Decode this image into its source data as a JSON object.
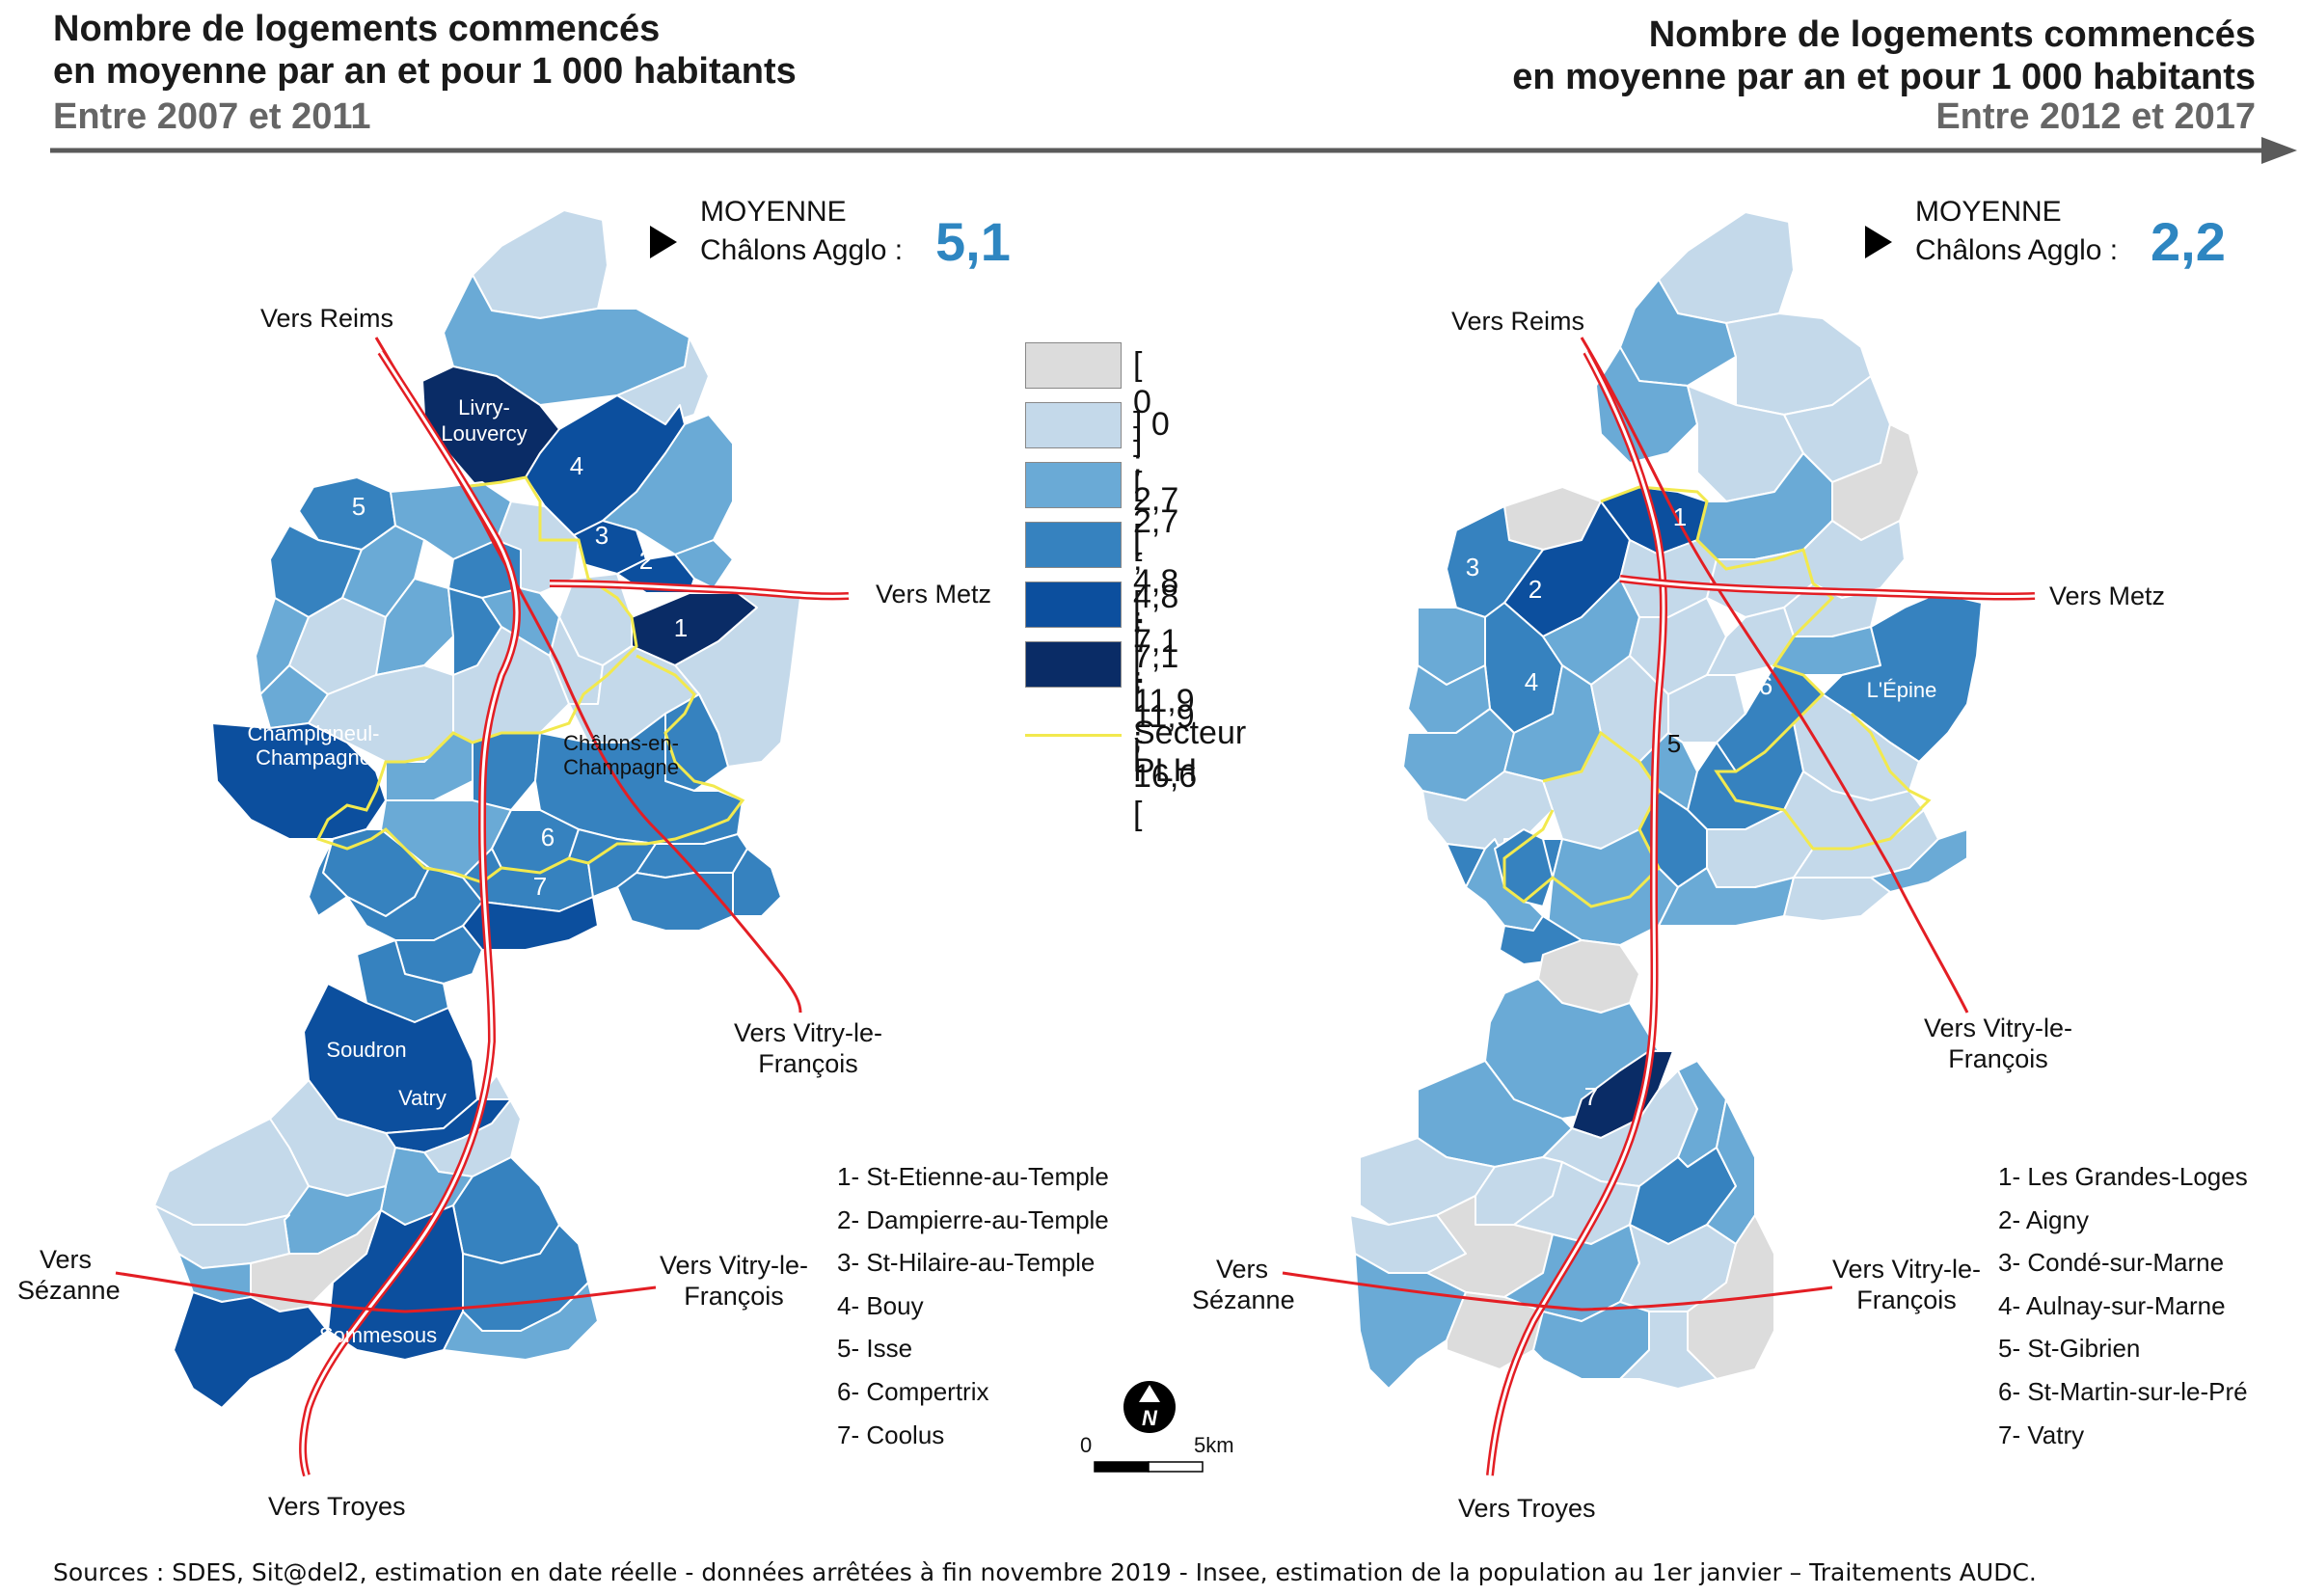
{
  "left_panel": {
    "title_line1": "Nombre de logements commencés",
    "title_line2": "en moyenne par an et pour 1 000 habitants",
    "period": "Entre 2007 et 2011",
    "average_label_line1": "MOYENNE",
    "average_label_line2": "Châlons Agglo :",
    "average_value": "5,1",
    "directions": {
      "reims": "Vers Reims",
      "metz": "Vers Metz",
      "vitry_east_line1": "Vers Vitry-le-",
      "vitry_east_line2": "François",
      "vitry_south_line1": "Vers Vitry-le-",
      "vitry_south_line2": "François",
      "sezanne_line1": "Vers",
      "sezanne_line2": "Sézanne",
      "troyes": "Vers Troyes"
    },
    "place_labels": {
      "livry_line1": "Livry-",
      "livry_line2": "Louvercy",
      "champigneul_line1": "Champigneul-",
      "champigneul_line2": "Champagne",
      "chalons_line1": "Châlons-en-",
      "chalons_line2": "Champagne",
      "soudron": "Soudron",
      "vatry": "Vatry",
      "sommesous": "Sommesous"
    },
    "numbers": [
      "1",
      "2",
      "3",
      "4",
      "5",
      "6",
      "7"
    ],
    "list": [
      "1- St-Etienne-au-Temple",
      "2- Dampierre-au-Temple",
      "3- St-Hilaire-au-Temple",
      "4- Bouy",
      "5- Isse",
      "6- Compertrix",
      "7- Coolus"
    ]
  },
  "right_panel": {
    "title_line1": "Nombre de logements commencés",
    "title_line2": "en moyenne par an et pour 1 000 habitants",
    "period": "Entre 2012 et 2017",
    "average_label_line1": "MOYENNE",
    "average_label_line2": "Châlons Agglo :",
    "average_value": "2,2",
    "directions": {
      "reims": "Vers Reims",
      "metz": "Vers Metz",
      "vitry_east_line1": "Vers Vitry-le-",
      "vitry_east_line2": "François",
      "vitry_south_line1": "Vers Vitry-le-",
      "vitry_south_line2": "François",
      "sezanne_line1": "Vers",
      "sezanne_line2": "Sézanne",
      "troyes": "Vers Troyes"
    },
    "place_labels": {
      "lepine": "L'Épine"
    },
    "numbers": [
      "1",
      "2",
      "3",
      "4",
      "5",
      "6",
      "7"
    ],
    "list": [
      "1- Les Grandes-Loges",
      "2- Aigny",
      "3- Condé-sur-Marne",
      "4- Aulnay-sur-Marne",
      "5- St-Gibrien",
      "6- St-Martin-sur-le-Pré",
      "7- Vatry"
    ]
  },
  "legend": {
    "classes": [
      {
        "label": "[ 0 ]",
        "color": "#dcdcdc"
      },
      {
        "label": "] 0 ; 2,7 [",
        "color": "#c4d9ea"
      },
      {
        "label": "[ 2,7 ; 4,8 [",
        "color": "#6aaad6"
      },
      {
        "label": "[ 4,8 ; 7,1 [",
        "color": "#3682bf"
      },
      {
        "label": "[ 7,1 ; 11,9 [",
        "color": "#0c4f9e"
      },
      {
        "label": "[ 11,9 ; 16,6 [",
        "color": "#0a2c66"
      }
    ],
    "plh_label": "Secteur PLH",
    "plh_color": "#f2e94e",
    "road_color": "#e31e24"
  },
  "scale": {
    "start": "0",
    "end": "5km",
    "north_icon": "north-arrow-icon"
  },
  "source": "Sources : SDES, Sit@del2, estimation en date réelle - données arrêtées à fin novembre 2019 - Insee, estimation de la population au 1er janvier – Traitements AUDC."
}
